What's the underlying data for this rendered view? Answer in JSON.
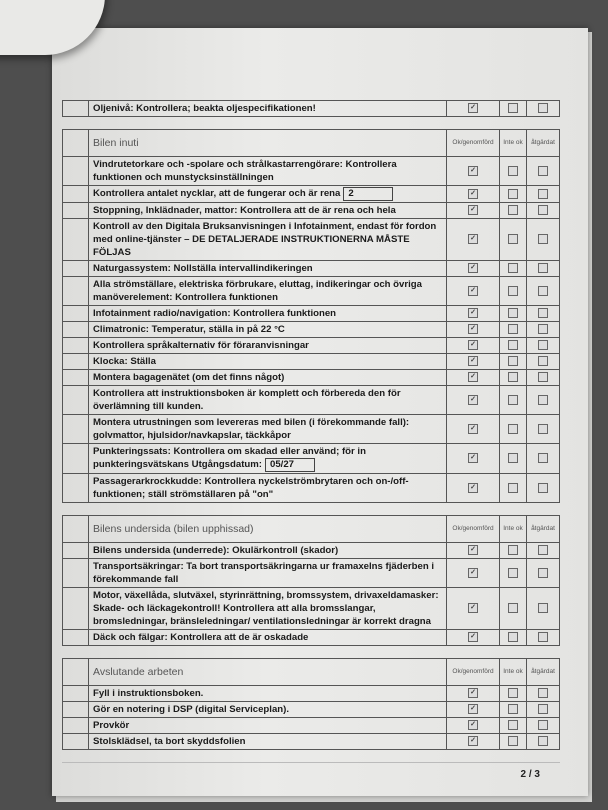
{
  "columns": {
    "ok": "Ok/genomförd",
    "inte": "Inte ok",
    "atgardat": "åtgärdat"
  },
  "sections": [
    {
      "title": "",
      "rows": [
        {
          "text": "Oljenivå: Kontrollera; beakta oljespecifikationen!",
          "ok": true,
          "inte": false,
          "atgardat": false
        }
      ]
    },
    {
      "title": "Bilen inuti",
      "rows": [
        {
          "text": "Vindrutetorkare och -spolare och strålkastarrengörare: Kontrollera funktionen och munstycksinställningen",
          "ok": true,
          "inte": false,
          "atgardat": false
        },
        {
          "text": "Kontrollera antalet nycklar, att de fungerar och är rena",
          "value": "2",
          "ok": true,
          "inte": false,
          "atgardat": false
        },
        {
          "text": "Stoppning, Inklädnader, mattor: Kontrollera att de är rena och hela",
          "ok": true,
          "inte": false,
          "atgardat": false
        },
        {
          "text": "Kontroll av den Digitala Bruksanvisningen i Infotainment, endast för fordon med online-tjänster – DE DETALJERADE INSTRUKTIONERNA MÅSTE FÖLJAS",
          "ok": true,
          "inte": false,
          "atgardat": false
        },
        {
          "text": "Naturgassystem: Nollställa intervallindikeringen",
          "ok": true,
          "inte": false,
          "atgardat": false
        },
        {
          "text": "Alla strömställare, elektriska förbrukare, eluttag, indikeringar och övriga manöverelement: Kontrollera funktionen",
          "ok": true,
          "inte": false,
          "atgardat": false
        },
        {
          "text": "Infotainment radio/navigation: Kontrollera funktionen",
          "ok": true,
          "inte": false,
          "atgardat": false
        },
        {
          "text": "Climatronic: Temperatur, ställa in på 22 °C",
          "ok": true,
          "inte": false,
          "atgardat": false
        },
        {
          "text": "Kontrollera språkalternativ för föraranvisningar",
          "ok": true,
          "inte": false,
          "atgardat": false
        },
        {
          "text": "Klocka: Ställa",
          "ok": true,
          "inte": false,
          "atgardat": false
        },
        {
          "text": "Montera bagagenätet (om det finns något)",
          "ok": true,
          "inte": false,
          "atgardat": false
        },
        {
          "text": "Kontrollera att instruktionsboken är komplett och förbereda den för överlämning till kunden.",
          "ok": true,
          "inte": false,
          "atgardat": false
        },
        {
          "text": "Montera utrustningen som levereras med bilen (i förekommande fall): golvmattor, hjulsidor/navkapslar, täckkåpor",
          "ok": true,
          "inte": false,
          "atgardat": false
        },
        {
          "text": "Punkteringssats: Kontrollera om skadad eller använd; för in punkteringsvätskans Utgångsdatum:",
          "value": "05/27",
          "ok": true,
          "inte": false,
          "atgardat": false
        },
        {
          "text": "Passagerarkrockkudde: Kontrollera nyckelströmbrytaren och on-/off-funktionen; ställ strömställaren på \"on\"",
          "ok": true,
          "inte": false,
          "atgardat": false
        }
      ]
    },
    {
      "title": "Bilens undersida (bilen upphissad)",
      "rows": [
        {
          "text": "Bilens undersida (underrede): Okulärkontroll (skador)",
          "ok": true,
          "inte": false,
          "atgardat": false
        },
        {
          "text": "Transportsäkringar: Ta bort transportsäkringarna ur framaxelns fjäderben i förekommande fall",
          "ok": true,
          "inte": false,
          "atgardat": false
        },
        {
          "text": "Motor, växellåda, slutväxel, styrinrättning, bromssystem, drivaxeldamasker: Skade- och läckagekontroll! Kontrollera att alla bromsslangar, bromsledningar, bränsleledningar/ ventilationsledningar är korrekt dragna",
          "ok": true,
          "inte": false,
          "atgardat": false
        },
        {
          "text": "Däck och fälgar: Kontrollera att de är oskadade",
          "ok": true,
          "inte": false,
          "atgardat": false
        }
      ]
    },
    {
      "title": "Avslutande arbeten",
      "rows": [
        {
          "text": "Fyll i instruktionsboken.",
          "ok": true,
          "inte": false,
          "atgardat": false
        },
        {
          "text": "Gör en notering i DSP (digital Serviceplan).",
          "ok": true,
          "inte": false,
          "atgardat": false
        },
        {
          "text": "Provkör",
          "ok": true,
          "inte": false,
          "atgardat": false
        },
        {
          "text": "Stolsklädsel, ta bort skyddsfolien",
          "ok": true,
          "inte": false,
          "atgardat": false
        }
      ]
    }
  ],
  "page_number": "2 / 3"
}
